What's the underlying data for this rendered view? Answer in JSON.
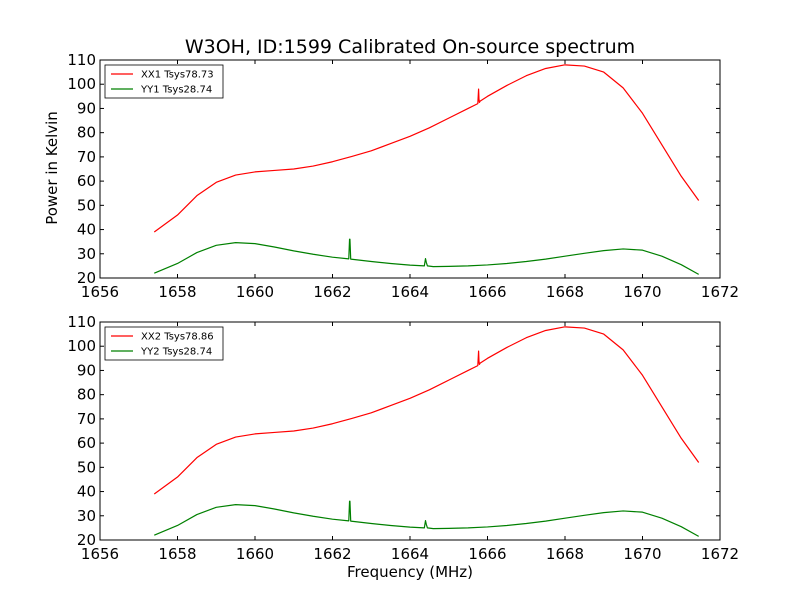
{
  "title": "W3OH, ID:1599 Calibrated On-source spectrum",
  "ylabel": "Power in Kelvin",
  "xlabel": "Frequency (MHz)",
  "chart_data": [
    {
      "type": "line",
      "xlim": [
        1656,
        1672
      ],
      "ylim": [
        20,
        110
      ],
      "xticks": [
        1656,
        1658,
        1660,
        1662,
        1664,
        1666,
        1668,
        1670,
        1672
      ],
      "yticks": [
        20,
        30,
        40,
        50,
        60,
        70,
        80,
        90,
        100,
        110
      ],
      "legend_position": "top-left",
      "series": [
        {
          "name": "XX1 Tsys78.73",
          "color": "#ff0000",
          "x": [
            1657.4,
            1658.0,
            1658.5,
            1659.0,
            1659.5,
            1660.0,
            1660.5,
            1661.0,
            1661.5,
            1662.0,
            1662.5,
            1663.0,
            1663.5,
            1664.0,
            1664.5,
            1665.0,
            1665.5,
            1665.75,
            1665.77,
            1665.78,
            1665.79,
            1665.81,
            1666.0,
            1666.5,
            1667.0,
            1667.5,
            1668.0,
            1668.5,
            1669.0,
            1669.5,
            1670.0,
            1670.5,
            1671.0,
            1671.45
          ],
          "y": [
            39,
            46,
            54,
            59.5,
            62.5,
            63.8,
            64.4,
            65,
            66.2,
            68,
            70.2,
            72.5,
            75.5,
            78.5,
            82,
            86,
            90,
            92,
            98,
            94,
            92.5,
            93,
            95,
            99.5,
            103.5,
            106.5,
            108,
            107.5,
            105,
            98.5,
            88,
            75,
            62,
            52
          ]
        },
        {
          "name": "YY1 Tsys28.74",
          "color": "#008000",
          "x": [
            1657.4,
            1658.0,
            1658.5,
            1659.0,
            1659.5,
            1660.0,
            1660.5,
            1661.0,
            1661.5,
            1662.0,
            1662.42,
            1662.44,
            1662.45,
            1662.47,
            1663.0,
            1663.5,
            1664.0,
            1664.37,
            1664.4,
            1664.42,
            1664.45,
            1664.6,
            1665.0,
            1665.5,
            1666.0,
            1666.5,
            1667.0,
            1667.5,
            1668.0,
            1668.5,
            1669.0,
            1669.5,
            1670.0,
            1670.5,
            1671.0,
            1671.45
          ],
          "y": [
            22,
            26,
            30.5,
            33.5,
            34.6,
            34.2,
            32.8,
            31.2,
            29.8,
            28.6,
            27.9,
            36,
            36,
            27.8,
            26.8,
            26,
            25.3,
            25,
            28,
            26.5,
            25,
            24.7,
            24.8,
            25,
            25.4,
            26,
            26.8,
            27.8,
            29,
            30.2,
            31.3,
            32,
            31.5,
            29,
            25.5,
            21.5
          ]
        }
      ]
    },
    {
      "type": "line",
      "xlim": [
        1656,
        1672
      ],
      "ylim": [
        20,
        110
      ],
      "xticks": [
        1656,
        1658,
        1660,
        1662,
        1664,
        1666,
        1668,
        1670,
        1672
      ],
      "yticks": [
        20,
        30,
        40,
        50,
        60,
        70,
        80,
        90,
        100,
        110
      ],
      "legend_position": "top-left",
      "series": [
        {
          "name": "XX2 Tsys78.86",
          "color": "#ff0000",
          "x": [
            1657.4,
            1658.0,
            1658.5,
            1659.0,
            1659.5,
            1660.0,
            1660.5,
            1661.0,
            1661.5,
            1662.0,
            1662.5,
            1663.0,
            1663.5,
            1664.0,
            1664.5,
            1665.0,
            1665.5,
            1665.75,
            1665.77,
            1665.78,
            1665.79,
            1665.81,
            1666.0,
            1666.5,
            1667.0,
            1667.5,
            1668.0,
            1668.5,
            1669.0,
            1669.5,
            1670.0,
            1670.5,
            1671.0,
            1671.45
          ],
          "y": [
            39,
            46,
            54,
            59.5,
            62.5,
            63.8,
            64.4,
            65,
            66.2,
            68,
            70.2,
            72.5,
            75.5,
            78.5,
            82,
            86,
            90,
            92,
            98,
            94,
            92.5,
            93,
            95,
            99.5,
            103.5,
            106.5,
            108,
            107.5,
            105,
            98.5,
            88,
            75,
            62,
            52
          ]
        },
        {
          "name": "YY2 Tsys28.74",
          "color": "#008000",
          "x": [
            1657.4,
            1658.0,
            1658.5,
            1659.0,
            1659.5,
            1660.0,
            1660.5,
            1661.0,
            1661.5,
            1662.0,
            1662.42,
            1662.44,
            1662.45,
            1662.47,
            1663.0,
            1663.5,
            1664.0,
            1664.37,
            1664.4,
            1664.42,
            1664.45,
            1664.6,
            1665.0,
            1665.5,
            1666.0,
            1666.5,
            1667.0,
            1667.5,
            1668.0,
            1668.5,
            1669.0,
            1669.5,
            1670.0,
            1670.5,
            1671.0,
            1671.45
          ],
          "y": [
            22,
            26,
            30.5,
            33.5,
            34.6,
            34.2,
            32.8,
            31.2,
            29.8,
            28.6,
            27.9,
            36,
            36,
            27.8,
            26.8,
            26,
            25.3,
            25,
            28,
            26.5,
            25,
            24.7,
            24.8,
            25,
            25.4,
            26,
            26.8,
            27.8,
            29,
            30.2,
            31.3,
            32,
            31.5,
            29,
            25.5,
            21.5
          ]
        }
      ]
    }
  ]
}
